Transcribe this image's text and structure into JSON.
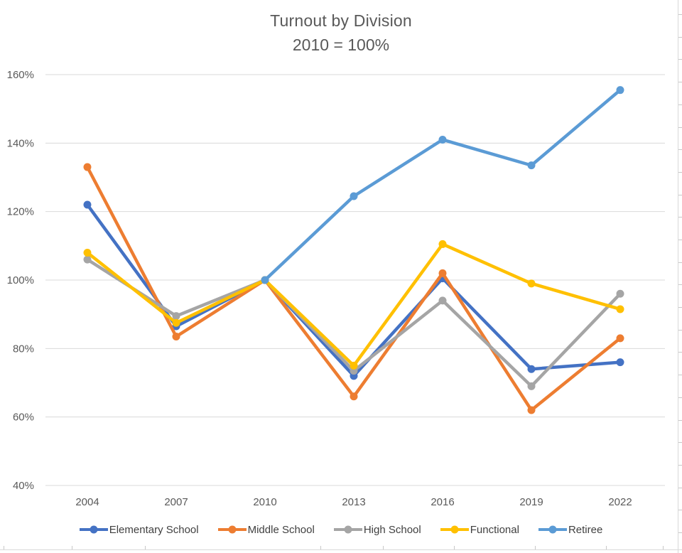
{
  "chart": {
    "title": "Turnout by Division",
    "subtitle": "2010 = 100%"
  },
  "chart_data": {
    "type": "line",
    "title": "Turnout by Division",
    "subtitle": "2010 = 100%",
    "categories": [
      "2004",
      "2007",
      "2010",
      "2013",
      "2016",
      "2019",
      "2022"
    ],
    "series": [
      {
        "name": "Elementary School",
        "color": "#4472C4",
        "values": [
          122,
          86.5,
          100,
          72,
          100.5,
          74,
          76
        ]
      },
      {
        "name": "Middle School",
        "color": "#ED7D31",
        "values": [
          133,
          83.5,
          100,
          66,
          102,
          62,
          83
        ]
      },
      {
        "name": "High School",
        "color": "#A5A5A5",
        "values": [
          106,
          89.5,
          100,
          73.5,
          94,
          69,
          96
        ]
      },
      {
        "name": "Functional",
        "color": "#FFC000",
        "values": [
          108,
          87.5,
          100,
          75,
          110.5,
          99,
          91.5
        ]
      },
      {
        "name": "Retiree",
        "color": "#5B9BD5",
        "values": [
          null,
          null,
          100,
          124.5,
          141,
          133.5,
          155.5
        ]
      }
    ],
    "y_axis": {
      "min": 40,
      "max": 160,
      "step": 20,
      "tick_labels": [
        "40%",
        "60%",
        "80%",
        "100%",
        "120%",
        "140%",
        "160%"
      ]
    },
    "x_axis": {
      "tick_labels": [
        "2004",
        "2007",
        "2010",
        "2013",
        "2016",
        "2019",
        "2022"
      ]
    },
    "grid": true,
    "legend_position": "bottom",
    "colors": {
      "title_text": "#595959",
      "axis_text": "#595959",
      "legend_text": "#404040",
      "gridline": "#d9d9d9"
    }
  }
}
